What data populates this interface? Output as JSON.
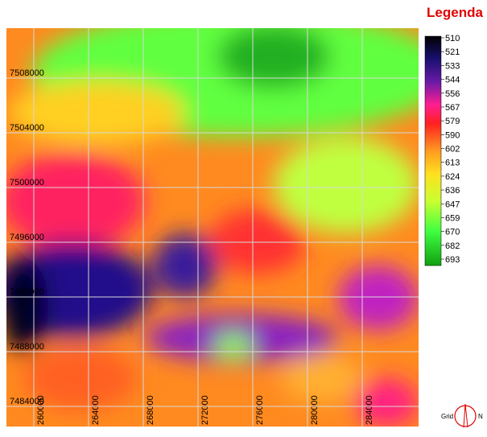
{
  "map": {
    "legend": {
      "title": "Legenda",
      "values": [
        "510",
        "521",
        "533",
        "544",
        "556",
        "567",
        "579",
        "590",
        "602",
        "613",
        "624",
        "636",
        "647",
        "659",
        "670",
        "682",
        "693"
      ]
    },
    "grid": {
      "y_labels": [
        "7508000",
        "7504000",
        "7500000",
        "7496000",
        "7492000",
        "7488000",
        "7484000"
      ],
      "x_labels": [
        "260000",
        "264000",
        "268000",
        "272000",
        "276000",
        "280000",
        "284000"
      ]
    },
    "north_arrow": {
      "left": "Grid",
      "right": "N"
    }
  }
}
